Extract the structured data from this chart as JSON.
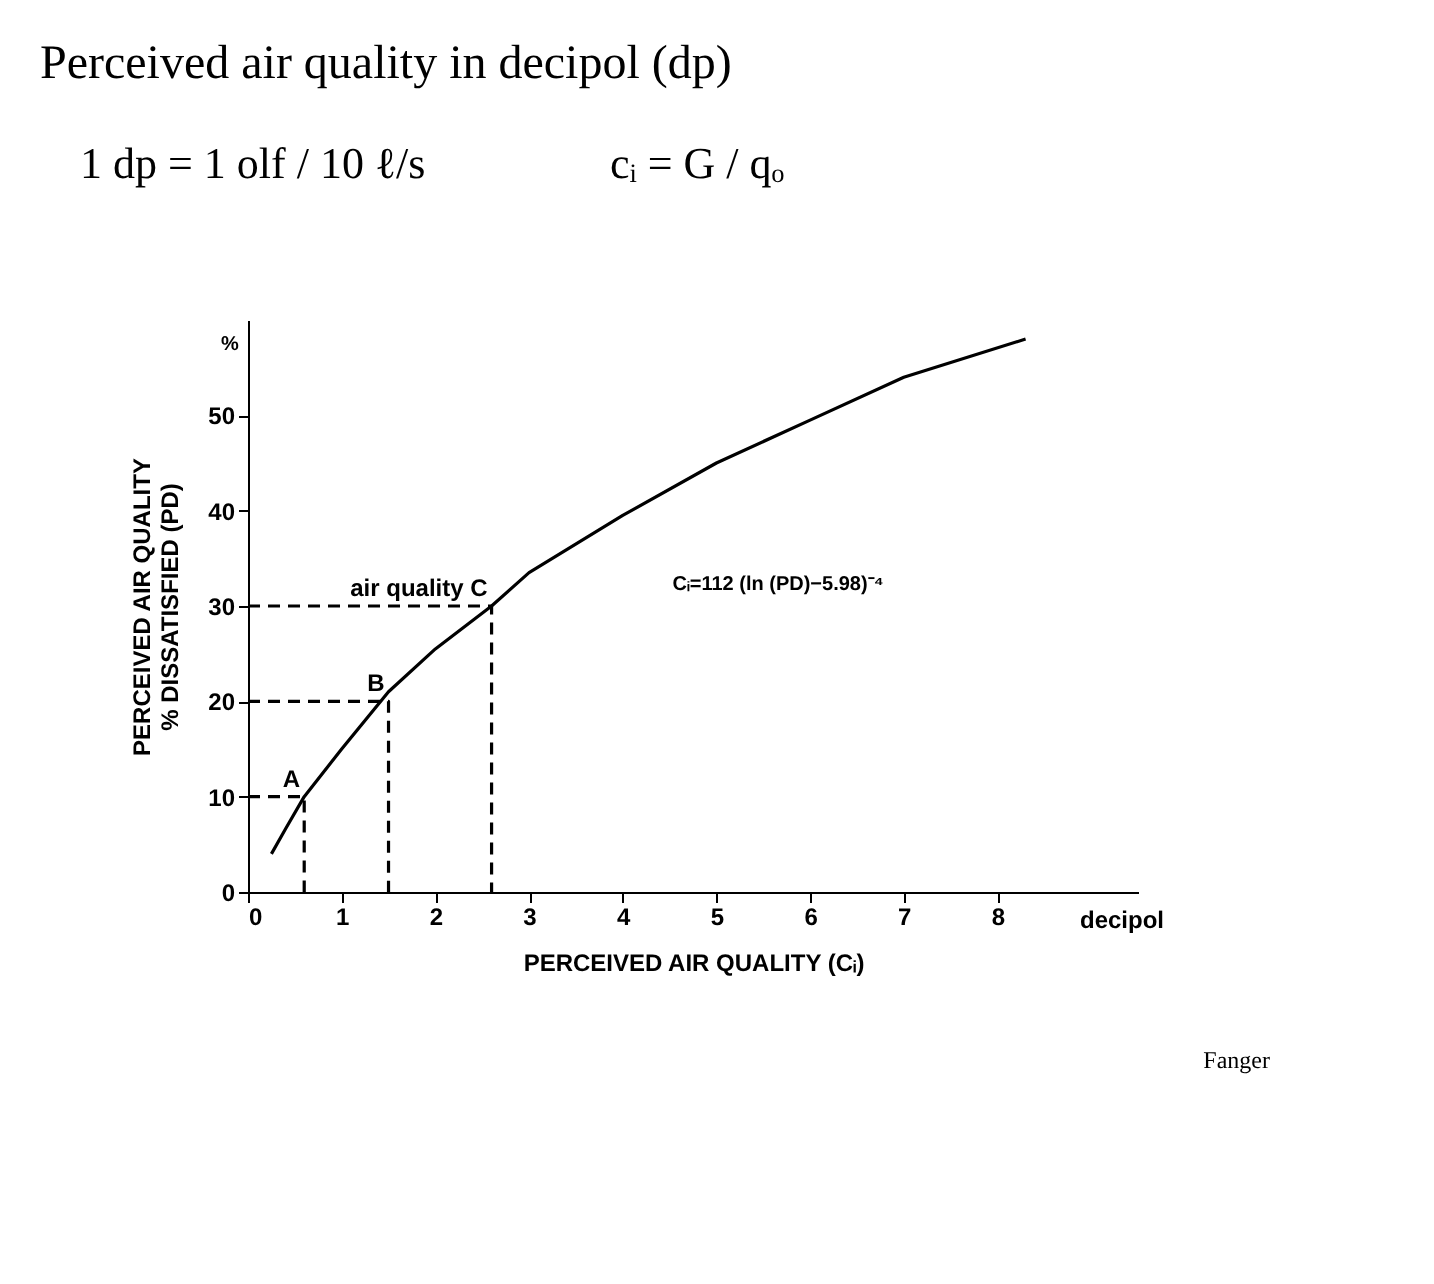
{
  "chart_data": {
    "type": "line",
    "title": "Perceived air quality in decipol (dp)",
    "xlabel": "PERCEIVED AIR QUALITY (Cᵢ)",
    "ylabel": "PERCEIVED AIR QUALITY\n% DISSATISFIED (PD)",
    "xlim": [
      0,
      9.5
    ],
    "ylim": [
      0,
      60
    ],
    "xticks": [
      0,
      1,
      2,
      3,
      4,
      5,
      6,
      7,
      8
    ],
    "yticks": [
      0,
      10,
      20,
      30,
      40,
      50
    ],
    "grid": false,
    "marker": "none",
    "series": [
      {
        "color": "#000000",
        "line_style": "solid",
        "x": [
          0.25,
          0.4,
          0.6,
          1,
          1.5,
          2,
          2.6,
          3,
          4,
          5,
          6,
          7,
          8.3
        ],
        "values": [
          4,
          6.6,
          10,
          15,
          21,
          25.5,
          30,
          33.5,
          39.5,
          45,
          49.5,
          54,
          58
        ]
      },
      {
        "color": "#000000",
        "line_style": "dashed",
        "x": [
          0,
          0.6,
          0.6
        ],
        "values": [
          10,
          10,
          0
        ]
      },
      {
        "color": "#000000",
        "line_style": "dashed",
        "x": [
          0,
          1.5,
          1.5
        ],
        "values": [
          20,
          20,
          0
        ]
      },
      {
        "color": "#000000",
        "line_style": "dashed",
        "x": [
          0,
          2.6,
          2.6
        ],
        "values": [
          30,
          30,
          0
        ]
      }
    ],
    "annotations": [
      "%",
      "decipol",
      "Cᵢ=112 (ln (PD)−5.98)⁻⁴",
      "1 dp  =  1 olf / 10 ℓ/s",
      "cᵢ  =  G / qₒ",
      "Fanger",
      {
        "text": "A",
        "x": 0.6,
        "y": 10
      },
      {
        "text": "B",
        "x": 1.5,
        "y": 20
      },
      {
        "text": "air quality C",
        "x": 2.6,
        "y": 30
      }
    ]
  }
}
